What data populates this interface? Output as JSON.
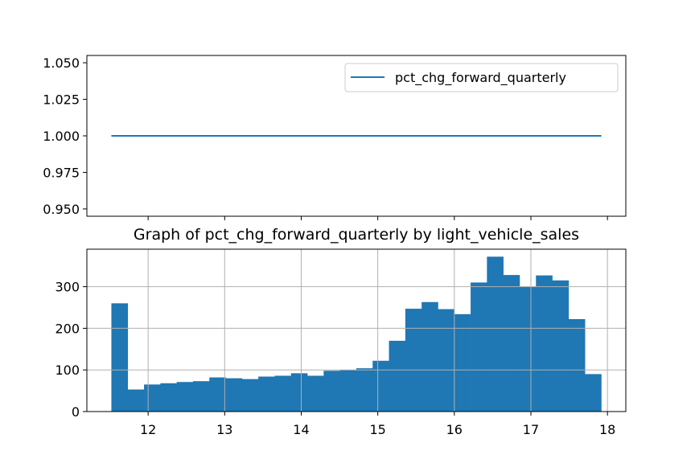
{
  "chart_data": [
    {
      "type": "line",
      "x": [
        11.52,
        17.92
      ],
      "values": [
        1.0,
        1.0
      ],
      "series": [
        {
          "name": "pct_chg_forward_quarterly",
          "values": [
            1.0,
            1.0
          ],
          "color": "#1f77b4"
        }
      ],
      "xlim": [
        11.2,
        18.24
      ],
      "ylim": [
        0.945,
        1.055
      ],
      "yticks": [
        0.95,
        0.975,
        1.0,
        1.025,
        1.05
      ],
      "ytick_labels": [
        "0.950",
        "0.975",
        "1.000",
        "1.025",
        "1.050"
      ],
      "xticks": [
        12,
        13,
        14,
        15,
        16,
        17,
        18
      ],
      "legend": {
        "label": "pct_chg_forward_quarterly",
        "position": "upper right"
      },
      "grid": false
    },
    {
      "type": "bar",
      "title": "Graph of pct_chg_forward_quarterly by light_vehicle_sales",
      "bin_start": 11.52,
      "bin_width": 0.2133,
      "values": [
        260,
        53,
        65,
        68,
        71,
        73,
        82,
        80,
        78,
        84,
        86,
        92,
        86,
        98,
        100,
        104,
        122,
        170,
        247,
        263,
        246,
        234,
        310,
        372,
        328,
        300,
        327,
        315,
        222,
        90
      ],
      "xlim": [
        11.2,
        18.24
      ],
      "ylim": [
        0,
        390
      ],
      "xticks": [
        12,
        13,
        14,
        15,
        16,
        17,
        18
      ],
      "xtick_labels": [
        "12",
        "13",
        "14",
        "15",
        "16",
        "17",
        "18"
      ],
      "yticks": [
        0,
        100,
        200,
        300
      ],
      "ytick_labels": [
        "0",
        "100",
        "200",
        "300"
      ],
      "color": "#1f77b4",
      "grid": true
    }
  ]
}
